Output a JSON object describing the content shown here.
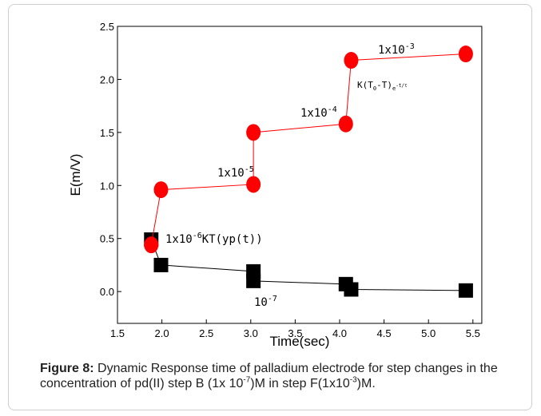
{
  "chart_data": {
    "type": "line",
    "xlabel": "Time(sec)",
    "ylabel": "E(m/V)",
    "xlim": [
      1.5,
      5.6
    ],
    "ylim": [
      -0.3,
      2.5
    ],
    "xticks": [
      1.5,
      {
        "value": 2,
        "label": "2.0"
      },
      2.5,
      {
        "value": 3,
        "label": "3.0"
      },
      3.5,
      {
        "value": 4,
        "label": "4.0"
      },
      4.5,
      {
        "value": 5,
        "label": "5.0"
      },
      5.5
    ],
    "yticks": [
      {
        "value": 0,
        "label": "0.0"
      },
      0.5,
      {
        "value": 1,
        "label": "1.0"
      },
      1.5,
      {
        "value": 2,
        "label": "2.0"
      },
      2.5
    ],
    "series": [
      {
        "color": "#000000",
        "marker": "square",
        "x": [
          1.88,
          1.99,
          3.03,
          3.03,
          4.07,
          4.13,
          5.42
        ],
        "values": [
          0.49,
          0.25,
          0.19,
          0.1,
          0.07,
          0.02,
          0.01
        ]
      },
      {
        "color": "#ff0000",
        "marker": "circle",
        "x": [
          1.88,
          1.99,
          3.03,
          3.03,
          4.07,
          4.13,
          5.42
        ],
        "values": [
          0.44,
          0.96,
          1.01,
          1.5,
          1.58,
          2.18,
          2.24
        ]
      }
    ],
    "annotations": [
      [
        "1x10",
        "-3"
      ],
      [
        "1x10",
        "-4"
      ],
      [
        "1x10",
        "-5"
      ],
      [
        "1x10",
        "-6",
        "KT(yp(t))"
      ],
      [
        "10",
        "-7"
      ],
      [
        "K(T",
        "0",
        "-T)",
        "e",
        "-t/τ"
      ]
    ]
  },
  "caption": {
    "label": "Figure 8:",
    "parts": [
      " Dynamic Response time of palladium electrode for step changes in the concentration of pd(II) step B (1x 10",
      "-7",
      ")M in step F(1x10",
      "-3",
      ")M."
    ]
  }
}
